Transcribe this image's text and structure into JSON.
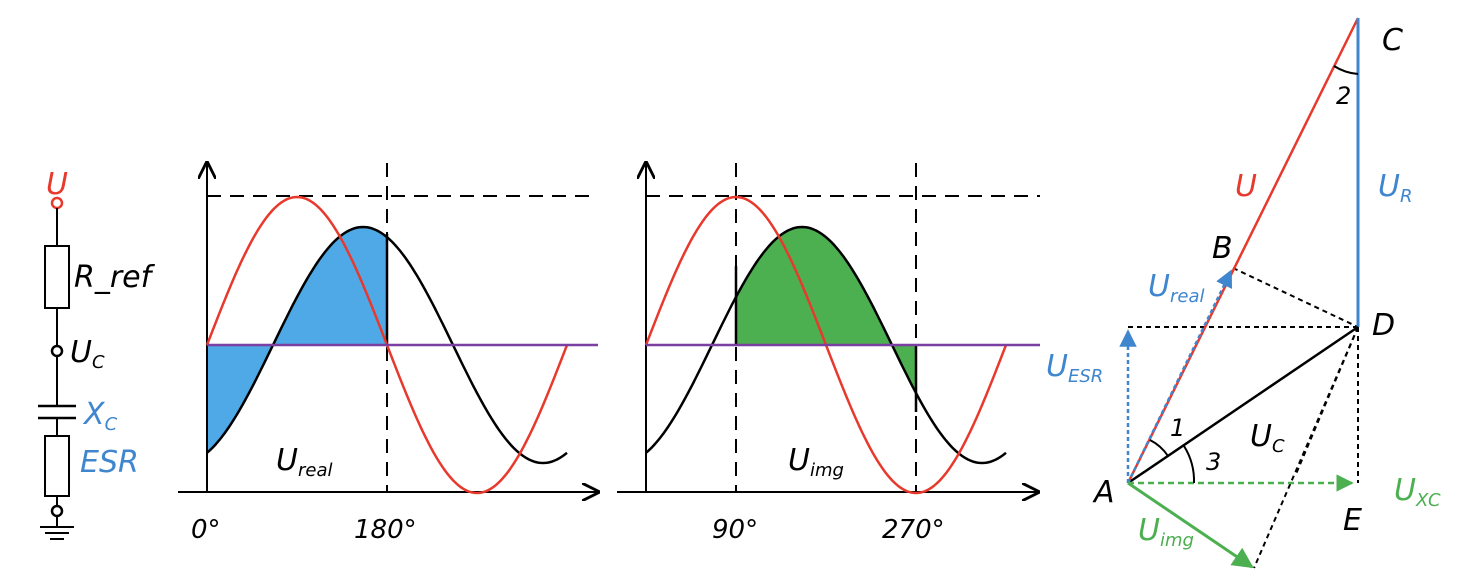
{
  "colors": {
    "red": "#e8392d",
    "blue": "#3f86cf",
    "fill_blue": "#4fa9e6",
    "green": "#4caf50",
    "purple": "#7a3fa0",
    "black": "#000000"
  },
  "circuit": {
    "u_label": "U",
    "r_ref_label": "R_ref",
    "uc_main": "U",
    "uc_sub": "C",
    "xc_main": "X",
    "xc_sub": "C",
    "esr_label": "ESR"
  },
  "graph_real": {
    "label_main": "U",
    "label_sub": "real",
    "ticks": [
      "0°",
      "180°"
    ]
  },
  "graph_img": {
    "label_main": "U",
    "label_sub": "img",
    "ticks": [
      "90°",
      "270°"
    ]
  },
  "phasor": {
    "points": {
      "A": "A",
      "B": "B",
      "C": "C",
      "D": "D",
      "E": "E"
    },
    "u": "U",
    "ur_main": "U",
    "ur_sub": "R",
    "ureal_main": "U",
    "ureal_sub": "real",
    "uesr_main": "U",
    "uesr_sub": "ESR",
    "uc_main": "U",
    "uc_sub": "C",
    "uxc_main": "U",
    "uxc_sub": "XC",
    "uimg_main": "U",
    "uimg_sub": "img",
    "angles": {
      "a1": "1",
      "a2": "2",
      "a3": "3"
    }
  }
}
